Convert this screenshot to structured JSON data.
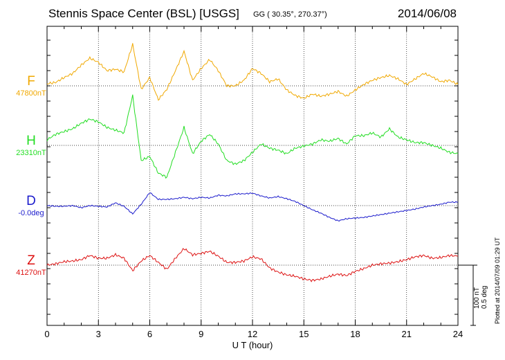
{
  "header": {
    "station": "Stennis Space Center (BSL)  [USGS]",
    "coords": "GG ( 30.35°, 270.37°)",
    "date": "2014/06/08"
  },
  "plotted_text": "Plotted at 2014/07/09 01:29 UT",
  "colors": {
    "F": "#f0a800",
    "H": "#22dd22",
    "D": "#1a1acc",
    "Z": "#dd1111"
  },
  "chart_data": {
    "type": "line",
    "title": "Stennis Space Center (BSL)  [USGS]",
    "xlabel": "U T (hour)",
    "xlim": [
      0,
      24
    ],
    "x_ticks": [
      "0",
      "3",
      "6",
      "9",
      "12",
      "15",
      "18",
      "21",
      "24"
    ],
    "grid": true,
    "scale_bar": {
      "line1": "100 nT",
      "line2": "0.5 deg"
    },
    "x": [
      0,
      0.5,
      1,
      1.5,
      2,
      2.5,
      3,
      3.5,
      4,
      4.5,
      5,
      5.5,
      6,
      6.5,
      7,
      7.5,
      8,
      8.5,
      9,
      9.5,
      10,
      10.5,
      11,
      11.5,
      12,
      12.5,
      13,
      13.5,
      14,
      14.5,
      15,
      15.5,
      16,
      16.5,
      17,
      17.5,
      18,
      18.5,
      19,
      19.5,
      20,
      20.5,
      21,
      21.5,
      22,
      22.5,
      23,
      23.5,
      24
    ],
    "series": [
      {
        "name": "F",
        "letter": "F",
        "baseline_text": "47800nT",
        "unit": "nT",
        "baseline": 47800,
        "values": [
          47803,
          47805,
          47812,
          47818,
          47830,
          47840,
          47834,
          47822,
          47824,
          47820,
          47860,
          47795,
          47812,
          47780,
          47795,
          47822,
          47850,
          47808,
          47825,
          47838,
          47822,
          47800,
          47800,
          47808,
          47825,
          47818,
          47806,
          47810,
          47794,
          47786,
          47782,
          47788,
          47785,
          47788,
          47792,
          47785,
          47794,
          47802,
          47808,
          47812,
          47815,
          47810,
          47802,
          47810,
          47818,
          47813,
          47806,
          47808,
          47802
        ]
      },
      {
        "name": "H",
        "letter": "H",
        "baseline_text": "23310nT",
        "unit": "nT",
        "baseline": 23310,
        "values": [
          23318,
          23326,
          23330,
          23334,
          23342,
          23348,
          23344,
          23336,
          23332,
          23328,
          23382,
          23288,
          23294,
          23270,
          23264,
          23300,
          23336,
          23298,
          23316,
          23326,
          23312,
          23288,
          23283,
          23288,
          23300,
          23312,
          23306,
          23303,
          23298,
          23306,
          23309,
          23312,
          23318,
          23316,
          23320,
          23312,
          23324,
          23324,
          23328,
          23322,
          23334,
          23322,
          23318,
          23314,
          23314,
          23310,
          23306,
          23300,
          23298
        ]
      },
      {
        "name": "D",
        "letter": "D",
        "baseline_text": "-0.0deg",
        "unit": "deg",
        "baseline": 0.0,
        "values": [
          0.0,
          -0.005,
          -0.005,
          0.0,
          -0.015,
          0.0,
          -0.005,
          -0.01,
          0.02,
          -0.005,
          -0.06,
          0.01,
          0.095,
          0.045,
          0.045,
          0.05,
          0.06,
          0.05,
          0.06,
          0.055,
          0.075,
          0.07,
          0.085,
          0.085,
          0.09,
          0.07,
          0.055,
          0.065,
          0.05,
          0.03,
          0.0,
          -0.03,
          -0.055,
          -0.085,
          -0.11,
          -0.095,
          -0.09,
          -0.085,
          -0.075,
          -0.065,
          -0.055,
          -0.045,
          -0.035,
          -0.025,
          -0.01,
          0.0,
          0.01,
          0.025,
          0.025
        ]
      },
      {
        "name": "Z",
        "letter": "Z",
        "baseline_text": "41270nT",
        "unit": "nT",
        "baseline": 41270,
        "values": [
          41270,
          41272,
          41275,
          41276,
          41278,
          41284,
          41280,
          41280,
          41285,
          41280,
          41262,
          41276,
          41284,
          41274,
          41264,
          41280,
          41294,
          41285,
          41287,
          41290,
          41283,
          41274,
          41274,
          41276,
          41282,
          41279,
          41266,
          41260,
          41256,
          41254,
          41250,
          41248,
          41250,
          41254,
          41257,
          41255,
          41261,
          41265,
          41270,
          41272,
          41273,
          41275,
          41278,
          41282,
          41284,
          41280,
          41281,
          41284,
          41283
        ]
      }
    ]
  }
}
